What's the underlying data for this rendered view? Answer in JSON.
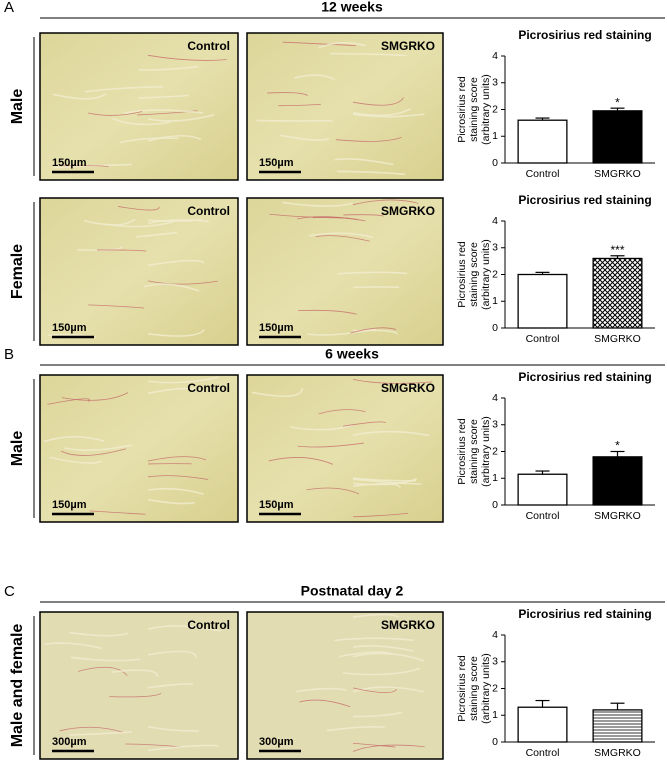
{
  "panels": [
    {
      "label": "A",
      "header": "12 weeks",
      "rows": [
        {
          "label": "Male",
          "images": [
            {
              "label": "Control",
              "scale": "150µm"
            },
            {
              "label": "SMGRKO",
              "scale": "150µm"
            }
          ]
        },
        {
          "label": "Female",
          "images": [
            {
              "label": "Control",
              "scale": "150µm"
            },
            {
              "label": "SMGRKO",
              "scale": "150µm"
            }
          ]
        }
      ]
    },
    {
      "label": "B",
      "header": "6 weeks",
      "rows": [
        {
          "label": "Male",
          "images": [
            {
              "label": "Control",
              "scale": "150µm"
            },
            {
              "label": "SMGRKO",
              "scale": "150µm"
            }
          ]
        }
      ]
    },
    {
      "label": "C",
      "header": "Postnatal day 2",
      "rows": [
        {
          "label": "Male and female",
          "images": [
            {
              "label": "Control",
              "scale": "300µm"
            },
            {
              "label": "SMGRKO",
              "scale": "300µm"
            }
          ]
        }
      ]
    }
  ],
  "chart_data": [
    {
      "type": "bar",
      "title": "Picrosirius red staining",
      "y_label": [
        "Picrosirius red",
        "staining score",
        "(arbitrary units)"
      ],
      "categories": [
        "Control",
        "SMGRKO"
      ],
      "values": [
        1.6,
        1.95
      ],
      "errors": [
        0.08,
        0.1
      ],
      "annotations": [
        null,
        "*"
      ],
      "fills": [
        "white",
        "black"
      ],
      "ylim": [
        0,
        4
      ],
      "yticks": [
        0,
        1,
        2,
        3,
        4
      ]
    },
    {
      "type": "bar",
      "title": "Picrosirius red staining",
      "y_label": [
        "Picrosirius red",
        "staining score",
        "(arbitrary units)"
      ],
      "categories": [
        "Control",
        "SMGRKO"
      ],
      "values": [
        2.0,
        2.6
      ],
      "errors": [
        0.08,
        0.1
      ],
      "annotations": [
        null,
        "***"
      ],
      "fills": [
        "white",
        "crosshatch"
      ],
      "ylim": [
        0,
        4
      ],
      "yticks": [
        0,
        1,
        2,
        3,
        4
      ]
    },
    {
      "type": "bar",
      "title": "Picrosirius red staining",
      "y_label": [
        "Picrosirius red",
        "staining score",
        "(arbitrary units)"
      ],
      "categories": [
        "Control",
        "SMGRKO"
      ],
      "values": [
        1.15,
        1.8
      ],
      "errors": [
        0.12,
        0.2
      ],
      "annotations": [
        null,
        "*"
      ],
      "fills": [
        "white",
        "black"
      ],
      "ylim": [
        0,
        4
      ],
      "yticks": [
        0,
        1,
        2,
        3,
        4
      ]
    },
    {
      "type": "bar",
      "title": "Picrosirius red staining",
      "y_label": [
        "Picrosirius red",
        "staining score",
        "(arbitrary units)"
      ],
      "categories": [
        "Control",
        "SMGRKO"
      ],
      "values": [
        1.3,
        1.2
      ],
      "errors": [
        0.25,
        0.25
      ],
      "annotations": [
        null,
        null
      ],
      "fills": [
        "white",
        "horizontal-lines"
      ],
      "ylim": [
        0,
        4
      ],
      "yticks": [
        0,
        1,
        2,
        3,
        4
      ]
    }
  ]
}
